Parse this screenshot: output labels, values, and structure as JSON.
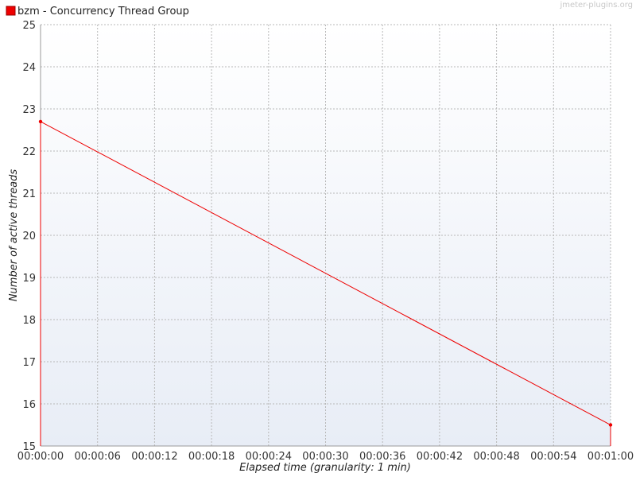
{
  "watermark": "jmeter-plugins.org",
  "chart_data": {
    "type": "line",
    "title": "",
    "xlabel": "Elapsed time (granularity: 1 min)",
    "ylabel": "Number of active threads",
    "x_tick_labels": [
      "00:00:00",
      "00:00:06",
      "00:00:12",
      "00:00:18",
      "00:00:24",
      "00:00:30",
      "00:00:36",
      "00:00:42",
      "00:00:48",
      "00:00:54",
      "00:01:00"
    ],
    "y_ticks": [
      15,
      16,
      17,
      18,
      19,
      20,
      21,
      22,
      23,
      24,
      25
    ],
    "xlim": [
      0,
      60
    ],
    "ylim": [
      15,
      25
    ],
    "x_unit": "seconds elapsed",
    "grid": true,
    "legend_position": "top-left",
    "series": [
      {
        "name": "bzm - Concurrency Thread Group",
        "color": "#ee0000",
        "points": [
          {
            "x": 0,
            "y": 15
          },
          {
            "x": 0,
            "y": 22.7
          },
          {
            "x": 60,
            "y": 15.5
          },
          {
            "x": 60,
            "y": 15
          }
        ],
        "markers": [
          {
            "x": 0,
            "y": 22.7
          },
          {
            "x": 60,
            "y": 15.5
          }
        ]
      }
    ]
  }
}
